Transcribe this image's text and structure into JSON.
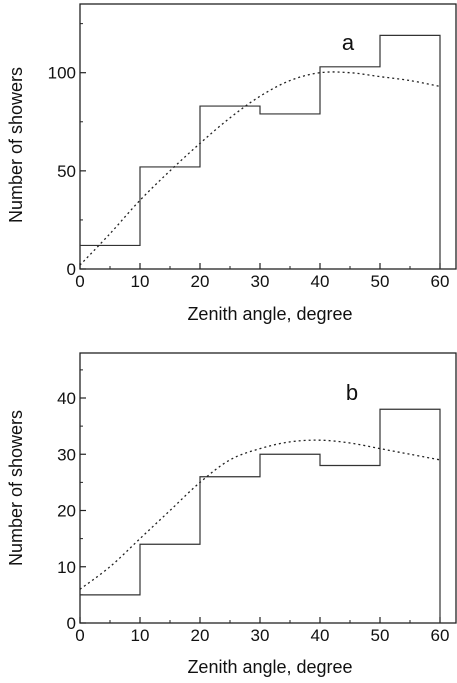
{
  "chart_data": [
    {
      "type": "histogram",
      "panel_label": "a",
      "xlabel": "Zenith angle, degree",
      "ylabel": "Number of showers",
      "xlim": [
        0,
        60
      ],
      "ylim": [
        0,
        135
      ],
      "xticks": [
        0,
        10,
        20,
        30,
        40,
        50,
        60
      ],
      "yticks": [
        0,
        50,
        100
      ],
      "bin_edges": [
        0,
        10,
        20,
        30,
        40,
        50,
        60
      ],
      "values": [
        12,
        52,
        83,
        79,
        103,
        119
      ],
      "fit_curve": {
        "style": "dotted",
        "x": [
          0,
          5,
          10,
          15,
          20,
          25,
          30,
          35,
          40,
          45,
          50,
          55,
          60
        ],
        "y": [
          2,
          18,
          35,
          50,
          64,
          77,
          88,
          96,
          100,
          100,
          98,
          96,
          93
        ]
      }
    },
    {
      "type": "histogram",
      "panel_label": "b",
      "xlabel": "Zenith angle, degree",
      "ylabel": "Number of showers",
      "xlim": [
        0,
        60
      ],
      "ylim": [
        0,
        48
      ],
      "xticks": [
        0,
        10,
        20,
        30,
        40,
        50,
        60
      ],
      "yticks": [
        0,
        10,
        20,
        30,
        40
      ],
      "bin_edges": [
        0,
        10,
        20,
        30,
        40,
        50,
        60
      ],
      "values": [
        5,
        14,
        26,
        30,
        28,
        38
      ],
      "fit_curve": {
        "style": "dotted",
        "x": [
          0,
          5,
          10,
          15,
          20,
          25,
          30,
          35,
          40,
          45,
          50,
          55,
          60
        ],
        "y": [
          6,
          10,
          15,
          20,
          25,
          29,
          31,
          32.2,
          32.5,
          32,
          31,
          30,
          29
        ]
      }
    }
  ]
}
